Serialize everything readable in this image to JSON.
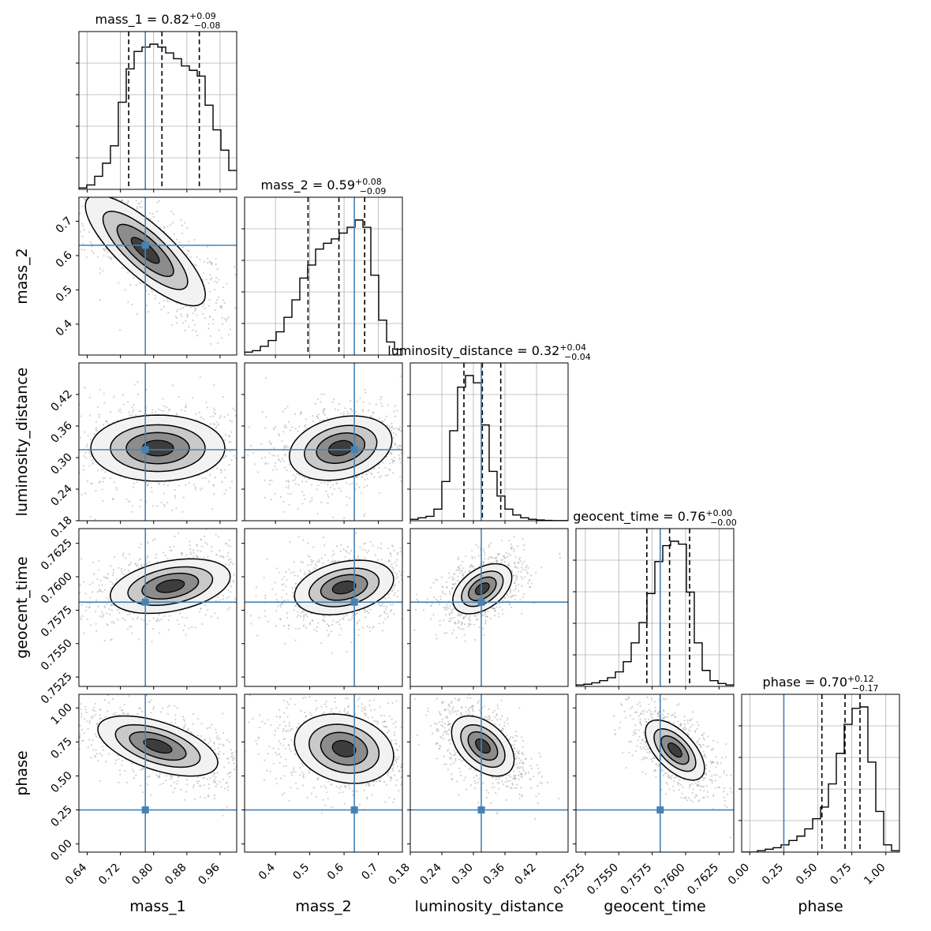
{
  "chart_data": {
    "type": "corner",
    "params": [
      "mass_1",
      "mass_2",
      "luminosity_distance",
      "geocent_time",
      "phase"
    ],
    "axis_labels": [
      "mass_1",
      "mass_2",
      "luminosity_distance",
      "geocent_time",
      "phase"
    ],
    "ranges": [
      [
        0.62,
        1.0
      ],
      [
        0.31,
        0.77
      ],
      [
        0.18,
        0.48
      ],
      [
        0.7518,
        0.7636
      ],
      [
        -0.06,
        1.1
      ]
    ],
    "ticks": [
      [
        "0.64",
        "0.72",
        "0.80",
        "0.88",
        "0.96"
      ],
      [
        "0.4",
        "0.5",
        "0.6",
        "0.7"
      ],
      [
        "0.18",
        "0.24",
        "0.30",
        "0.36",
        "0.42"
      ],
      [
        "0.7525",
        "0.7550",
        "0.7575",
        "0.7600",
        "0.7625"
      ],
      [
        "0.00",
        "0.25",
        "0.50",
        "0.75",
        "1.00"
      ]
    ],
    "truths": [
      0.78,
      0.63,
      0.315,
      0.7581,
      0.25
    ],
    "titles": [
      {
        "name": "mass_1",
        "median": "0.82",
        "plus": "+0.09",
        "minus": "−0.08"
      },
      {
        "name": "mass_2",
        "median": "0.59",
        "plus": "+0.08",
        "minus": "−0.09"
      },
      {
        "name": "luminosity_distance",
        "median": "0.32",
        "plus": "+0.04",
        "minus": "−0.04"
      },
      {
        "name": "geocent_time",
        "median": "0.76",
        "plus": "+0.00",
        "minus": "−0.00"
      },
      {
        "name": "phase",
        "median": "0.70",
        "plus": "+0.12",
        "minus": "−0.17"
      }
    ],
    "quantiles": [
      [
        0.74,
        0.82,
        0.91
      ],
      [
        0.495,
        0.585,
        0.66
      ],
      [
        0.282,
        0.317,
        0.352
      ],
      [
        0.7571,
        0.7588,
        0.7603
      ],
      [
        0.53,
        0.7,
        0.81
      ]
    ],
    "hist1d": [
      {
        "start": 0.62,
        "width": 0.019,
        "counts": [
          0.01,
          0.03,
          0.09,
          0.18,
          0.3,
          0.6,
          0.83,
          0.95,
          0.98,
          1.0,
          0.98,
          0.94,
          0.9,
          0.85,
          0.82,
          0.78,
          0.58,
          0.41,
          0.27,
          0.13
        ]
      },
      {
        "start": 0.31,
        "width": 0.023,
        "counts": [
          0.02,
          0.03,
          0.06,
          0.1,
          0.16,
          0.26,
          0.38,
          0.53,
          0.62,
          0.73,
          0.77,
          0.8,
          0.84,
          0.88,
          0.93,
          0.88,
          0.55,
          0.24,
          0.09,
          0.04
        ]
      },
      {
        "start": 0.18,
        "width": 0.015,
        "counts": [
          0.01,
          0.02,
          0.03,
          0.08,
          0.27,
          0.62,
          0.92,
          1.0,
          0.95,
          0.66,
          0.34,
          0.17,
          0.08,
          0.04,
          0.02,
          0.01,
          0.005,
          0.002,
          0.001,
          0.001
        ]
      },
      {
        "start": 0.7518,
        "width": 0.00059,
        "counts": [
          0.01,
          0.015,
          0.025,
          0.04,
          0.06,
          0.1,
          0.17,
          0.3,
          0.44,
          0.64,
          0.86,
          0.97,
          1.0,
          0.98,
          0.65,
          0.3,
          0.11,
          0.04,
          0.02,
          0.01
        ]
      },
      {
        "start": -0.06,
        "width": 0.058,
        "counts": [
          0.0,
          0.0,
          0.01,
          0.02,
          0.03,
          0.05,
          0.08,
          0.11,
          0.16,
          0.23,
          0.31,
          0.47,
          0.68,
          0.88,
          0.99,
          1.0,
          0.62,
          0.28,
          0.05,
          0.01
        ]
      }
    ],
    "pair_modes": [
      {
        "row": 1,
        "col": 0,
        "blobs": [
          {
            "cx": 0.78,
            "cy": 0.615,
            "sx": 0.085,
            "sy": 0.095,
            "rho": -0.8
          }
        ]
      },
      {
        "row": 2,
        "col": 0,
        "blobs": [
          {
            "cx": 0.81,
            "cy": 0.318,
            "sx": 0.095,
            "sy": 0.037,
            "rho": 0.0
          }
        ]
      },
      {
        "row": 2,
        "col": 1,
        "blobs": [
          {
            "cx": 0.59,
            "cy": 0.318,
            "sx": 0.088,
            "sy": 0.036,
            "rho": 0.25
          }
        ]
      },
      {
        "row": 3,
        "col": 0,
        "blobs": [
          {
            "cx": 0.84,
            "cy": 0.7593,
            "sx": 0.085,
            "sy": 0.0012,
            "rho": 0.35
          }
        ]
      },
      {
        "row": 3,
        "col": 1,
        "blobs": [
          {
            "cx": 0.6,
            "cy": 0.7592,
            "sx": 0.085,
            "sy": 0.0012,
            "rho": 0.3
          }
        ]
      },
      {
        "row": 3,
        "col": 2,
        "blobs": [
          {
            "cx": 0.317,
            "cy": 0.7591,
            "sx": 0.033,
            "sy": 0.0011,
            "rho": 0.45
          }
        ]
      },
      {
        "row": 4,
        "col": 0,
        "blobs": [
          {
            "cx": 0.81,
            "cy": 0.72,
            "sx": 0.085,
            "sy": 0.13,
            "rho": -0.55
          }
        ]
      },
      {
        "row": 4,
        "col": 1,
        "blobs": [
          {
            "cx": 0.6,
            "cy": 0.7,
            "sx": 0.085,
            "sy": 0.15,
            "rho": -0.2
          }
        ]
      },
      {
        "row": 4,
        "col": 2,
        "blobs": [
          {
            "cx": 0.318,
            "cy": 0.72,
            "sx": 0.035,
            "sy": 0.13,
            "rho": -0.45
          }
        ]
      },
      {
        "row": 4,
        "col": 3,
        "blobs": [
          {
            "cx": 0.7592,
            "cy": 0.69,
            "sx": 0.0013,
            "sy": 0.13,
            "rho": -0.6
          }
        ]
      }
    ]
  }
}
